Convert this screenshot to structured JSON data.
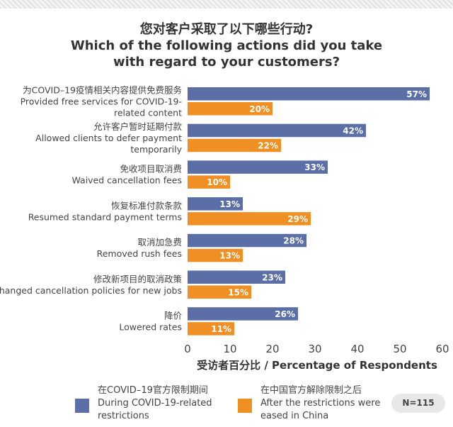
{
  "title": {
    "line1": "您对客户采取了以下哪些行动?",
    "line2": "Which of the following actions did you take",
    "line3": "with regard to your customers?"
  },
  "legend": {
    "during": {
      "line1": "在COVID–19官方限制期间",
      "line2": "During COVID-19-related",
      "line3": "restrictions",
      "color": "#5b6ea6"
    },
    "after": {
      "line1": "在中国官方解除限制之后",
      "line2": "After the restrictions were",
      "line3": "eased in China",
      "color": "#ef8f24"
    }
  },
  "sample_size": "N=115",
  "chart_data": {
    "type": "bar",
    "orientation": "horizontal",
    "categories": [
      [
        "为COVID–19疫情相关内容提供免费服务",
        "Provided free services for COVID-19-",
        "related content"
      ],
      [
        "允许客户暂时延期付款",
        "Allowed clients to defer payment",
        "temporarily"
      ],
      [
        "免收项目取消费",
        "Waived cancellation fees"
      ],
      [
        "恢复标准付款条款",
        "Resumed standard payment terms"
      ],
      [
        "取消加急费",
        "Removed rush fees"
      ],
      [
        "修改新项目的取消政策",
        "Changed cancellation policies for new jobs"
      ],
      [
        "降价",
        "Lowered rates"
      ]
    ],
    "series": [
      {
        "name": "During COVID-19-related restrictions",
        "color": "#5b6ea6",
        "values": [
          57,
          42,
          33,
          13,
          28,
          23,
          26
        ],
        "labels": [
          "57%",
          "42%",
          "33%",
          "13%",
          "28%",
          "23%",
          "26%"
        ]
      },
      {
        "name": "After the restrictions were eased in China",
        "color": "#ef8f24",
        "values": [
          20,
          22,
          10,
          29,
          13,
          15,
          11
        ],
        "labels": [
          "20%",
          "22%",
          "10%",
          "29%",
          "13%",
          "15%",
          "11%"
        ]
      }
    ],
    "xlim": [
      0,
      60
    ],
    "xticks": [
      "0",
      "10",
      "20",
      "30",
      "40",
      "50",
      "60"
    ],
    "xlabel": "受访者百分比 / Percentage of Respondents",
    "grid": false,
    "legend_position": "bottom"
  }
}
